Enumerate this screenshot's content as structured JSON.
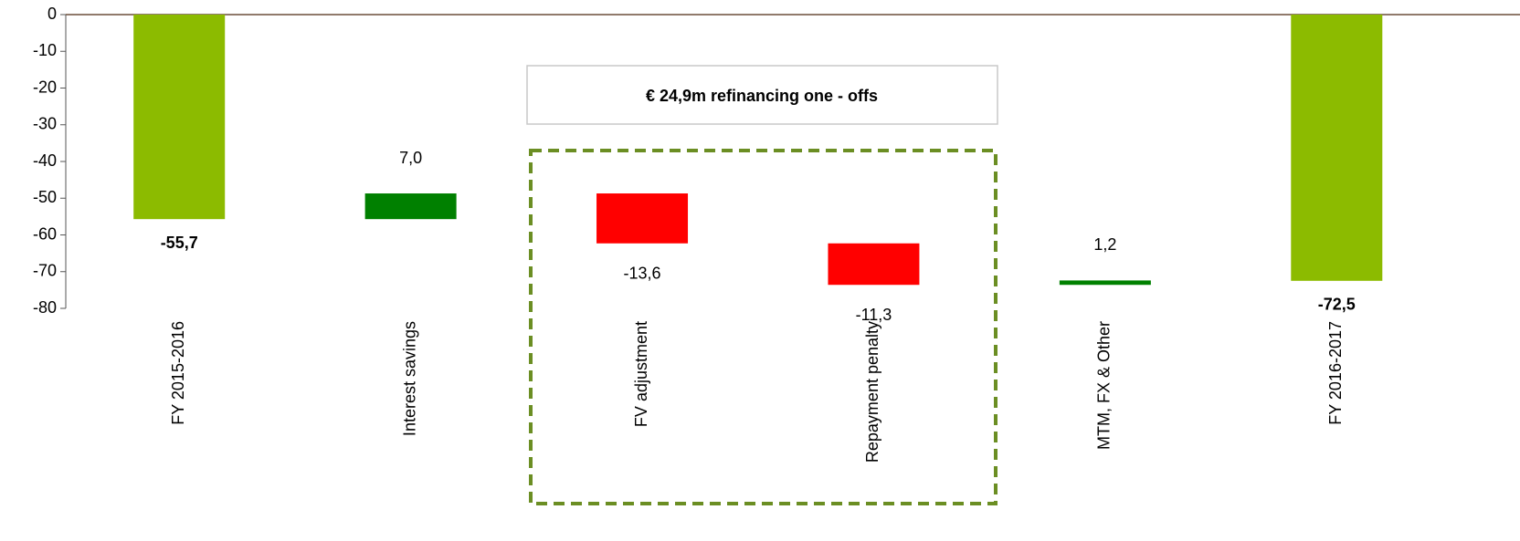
{
  "chart_data": {
    "type": "waterfall",
    "categories": [
      "FY 2015-2016",
      "Interest savings",
      "FV adjustment",
      "Repayment penalty",
      "MTM, FX & Other",
      "FY 2016-2017"
    ],
    "values": [
      -55.7,
      7.0,
      -13.6,
      -11.3,
      1.2,
      -72.5
    ],
    "value_labels": [
      "-55,7",
      "7,0",
      "-13,6",
      "-11,3",
      "1,2",
      "-72,5"
    ],
    "totals": [
      true,
      false,
      false,
      false,
      false,
      true
    ],
    "colors": [
      "#8cbb00",
      "#008000",
      "#ff0000",
      "#ff0000",
      "#008000",
      "#8cbb00"
    ],
    "annotation": "€ 24,9m refinancing one - offs",
    "ylim": [
      -80,
      0
    ],
    "yticks": [
      0,
      -10,
      -20,
      -30,
      -40,
      -50,
      -60,
      -70,
      -80
    ]
  }
}
